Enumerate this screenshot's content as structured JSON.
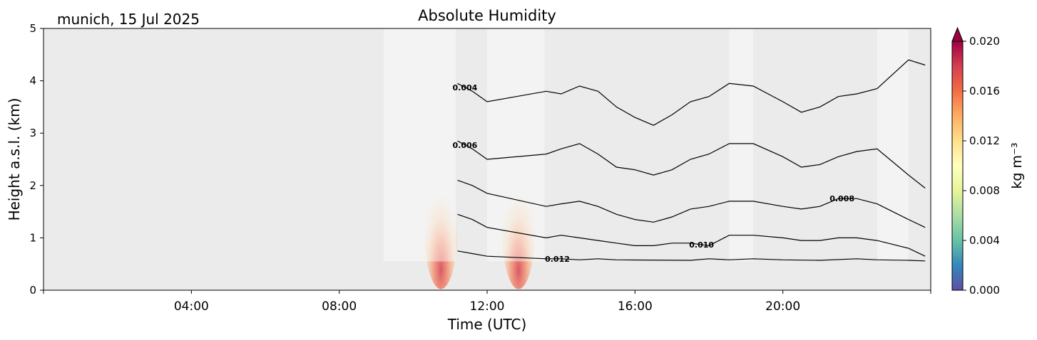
{
  "chart_data": {
    "type": "heatmap",
    "title": "Absolute Humidity",
    "location_date": "munich, 15 Jul 2025",
    "xlabel": "Time (UTC)",
    "ylabel": "Height a.s.l. (km)",
    "xlim_hours": [
      0,
      24
    ],
    "ylim_km": [
      0,
      5
    ],
    "xticks": [
      {
        "hour": 4,
        "label": "04:00"
      },
      {
        "hour": 8,
        "label": "08:00"
      },
      {
        "hour": 12,
        "label": "12:00"
      },
      {
        "hour": 16,
        "label": "16:00"
      },
      {
        "hour": 20,
        "label": "20:00"
      }
    ],
    "yticks": [
      {
        "km": 0,
        "label": "0"
      },
      {
        "km": 1,
        "label": "1"
      },
      {
        "km": 2,
        "label": "2"
      },
      {
        "km": 3,
        "label": "3"
      },
      {
        "km": 4,
        "label": "4"
      },
      {
        "km": 5,
        "label": "5"
      }
    ],
    "data_range_hours": [
      9.2,
      23.85
    ],
    "data_height_range_km": [
      0.55,
      5.0
    ],
    "background_color": "#ebebeb",
    "masked_periods_hours": [
      [
        9.2,
        11.15
      ],
      [
        12.0,
        13.55
      ],
      [
        18.55,
        19.2
      ],
      [
        22.55,
        23.4
      ]
    ],
    "colorbar": {
      "label": "kg m⁻³",
      "min": 0.0,
      "max": 0.02,
      "extend": "max",
      "ticks": [
        {
          "value": 0.0,
          "label": "0.000"
        },
        {
          "value": 0.004,
          "label": "0.004"
        },
        {
          "value": 0.008,
          "label": "0.008"
        },
        {
          "value": 0.012,
          "label": "0.012"
        },
        {
          "value": 0.016,
          "label": "0.016"
        },
        {
          "value": 0.02,
          "label": "0.020"
        }
      ],
      "colors": [
        "#5e4fa2",
        "#3288bd",
        "#66c2a5",
        "#abdda4",
        "#e6f598",
        "#ffffbf",
        "#fee08b",
        "#fdae61",
        "#f46d43",
        "#d53e4f",
        "#9e0142"
      ]
    },
    "contours": [
      {
        "value": 0.004,
        "label": "0.004",
        "label_hour": 11.4,
        "heights_km": [
          [
            11.2,
            3.95
          ],
          [
            11.6,
            3.8
          ],
          [
            12.0,
            3.6
          ],
          [
            13.6,
            3.8
          ],
          [
            14.0,
            3.75
          ],
          [
            14.5,
            3.9
          ],
          [
            15.0,
            3.8
          ],
          [
            15.5,
            3.5
          ],
          [
            16.0,
            3.3
          ],
          [
            16.5,
            3.15
          ],
          [
            17.0,
            3.35
          ],
          [
            17.5,
            3.6
          ],
          [
            18.0,
            3.7
          ],
          [
            18.55,
            3.95
          ],
          [
            19.2,
            3.9
          ],
          [
            20.0,
            3.6
          ],
          [
            20.5,
            3.4
          ],
          [
            21.0,
            3.5
          ],
          [
            21.5,
            3.7
          ],
          [
            22.0,
            3.75
          ],
          [
            22.55,
            3.85
          ],
          [
            23.4,
            4.4
          ],
          [
            23.85,
            4.3
          ]
        ]
      },
      {
        "value": 0.006,
        "label": "0.006",
        "label_hour": 11.4,
        "heights_km": [
          [
            11.2,
            2.85
          ],
          [
            11.6,
            2.7
          ],
          [
            12.0,
            2.5
          ],
          [
            13.6,
            2.6
          ],
          [
            14.0,
            2.7
          ],
          [
            14.5,
            2.8
          ],
          [
            15.0,
            2.6
          ],
          [
            15.5,
            2.35
          ],
          [
            16.0,
            2.3
          ],
          [
            16.5,
            2.2
          ],
          [
            17.0,
            2.3
          ],
          [
            17.5,
            2.5
          ],
          [
            18.0,
            2.6
          ],
          [
            18.55,
            2.8
          ],
          [
            19.2,
            2.8
          ],
          [
            20.0,
            2.55
          ],
          [
            20.5,
            2.35
          ],
          [
            21.0,
            2.4
          ],
          [
            21.5,
            2.55
          ],
          [
            22.0,
            2.65
          ],
          [
            22.55,
            2.7
          ],
          [
            23.4,
            2.2
          ],
          [
            23.85,
            1.95
          ]
        ]
      },
      {
        "value": 0.008,
        "label": "0.008",
        "label_hour": 21.6,
        "heights_km": [
          [
            11.2,
            2.1
          ],
          [
            11.6,
            2.0
          ],
          [
            12.0,
            1.85
          ],
          [
            13.6,
            1.6
          ],
          [
            14.0,
            1.65
          ],
          [
            14.5,
            1.7
          ],
          [
            15.0,
            1.6
          ],
          [
            15.5,
            1.45
          ],
          [
            16.0,
            1.35
          ],
          [
            16.5,
            1.3
          ],
          [
            17.0,
            1.4
          ],
          [
            17.5,
            1.55
          ],
          [
            18.0,
            1.6
          ],
          [
            18.55,
            1.7
          ],
          [
            19.2,
            1.7
          ],
          [
            20.0,
            1.6
          ],
          [
            20.5,
            1.55
          ],
          [
            21.0,
            1.6
          ],
          [
            21.5,
            1.75
          ],
          [
            22.0,
            1.75
          ],
          [
            22.55,
            1.65
          ],
          [
            23.4,
            1.35
          ],
          [
            23.85,
            1.2
          ]
        ]
      },
      {
        "value": 0.01,
        "label": "0.010",
        "label_hour": 17.8,
        "heights_km": [
          [
            11.2,
            1.45
          ],
          [
            11.6,
            1.35
          ],
          [
            12.0,
            1.2
          ],
          [
            13.6,
            1.0
          ],
          [
            14.0,
            1.05
          ],
          [
            14.5,
            1.0
          ],
          [
            15.0,
            0.95
          ],
          [
            15.5,
            0.9
          ],
          [
            16.0,
            0.85
          ],
          [
            16.5,
            0.85
          ],
          [
            17.0,
            0.9
          ],
          [
            17.5,
            0.9
          ],
          [
            18.0,
            0.85
          ],
          [
            18.55,
            1.05
          ],
          [
            19.2,
            1.05
          ],
          [
            20.0,
            1.0
          ],
          [
            20.5,
            0.95
          ],
          [
            21.0,
            0.95
          ],
          [
            21.5,
            1.0
          ],
          [
            22.0,
            1.0
          ],
          [
            22.55,
            0.95
          ],
          [
            23.4,
            0.8
          ],
          [
            23.85,
            0.65
          ]
        ]
      },
      {
        "value": 0.012,
        "label": "0.012",
        "label_hour": 13.9,
        "heights_km": [
          [
            11.2,
            0.75
          ],
          [
            11.6,
            0.7
          ],
          [
            12.0,
            0.65
          ],
          [
            13.6,
            0.6
          ],
          [
            14.0,
            0.6
          ],
          [
            14.5,
            0.58
          ],
          [
            15.0,
            0.6
          ],
          [
            15.5,
            0.58
          ],
          [
            17.5,
            0.57
          ],
          [
            18.0,
            0.6
          ],
          [
            18.55,
            0.58
          ],
          [
            19.2,
            0.6
          ],
          [
            20.0,
            0.58
          ],
          [
            21.0,
            0.57
          ],
          [
            22.0,
            0.6
          ],
          [
            22.55,
            0.58
          ],
          [
            23.4,
            0.57
          ],
          [
            23.85,
            0.56
          ]
        ]
      }
    ],
    "humidity_peaks": [
      {
        "hour": 10.75,
        "height_km": 0.7,
        "value": 0.018
      },
      {
        "hour": 12.85,
        "height_km": 0.7,
        "value": 0.019
      }
    ]
  }
}
